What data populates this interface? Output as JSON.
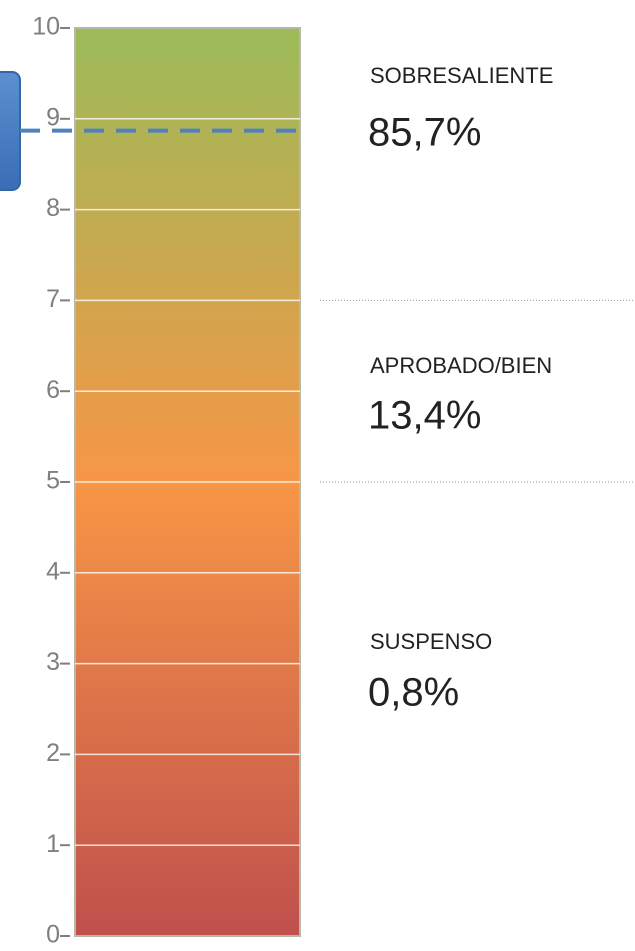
{
  "chart_data": {
    "type": "scale",
    "ylim": [
      0,
      10
    ],
    "yticks": [
      0,
      1,
      2,
      3,
      4,
      5,
      6,
      7,
      8,
      9,
      10
    ],
    "marker": 8.87,
    "marker_color": "#4f81bd",
    "gradient": [
      "#9bbb59",
      "#f79646",
      "#c0504d"
    ],
    "bands": [
      {
        "name": "SOBRESALIENTE",
        "range": [
          7,
          10
        ],
        "value": 85.7,
        "value_label": "85,7%"
      },
      {
        "name": "APROBADO/BIEN",
        "range": [
          5,
          7
        ],
        "value": 13.4,
        "value_label": "13,4%"
      },
      {
        "name": "SUSPENSO",
        "range": [
          0,
          5
        ],
        "value": 0.8,
        "value_label": "0,8%"
      }
    ]
  }
}
